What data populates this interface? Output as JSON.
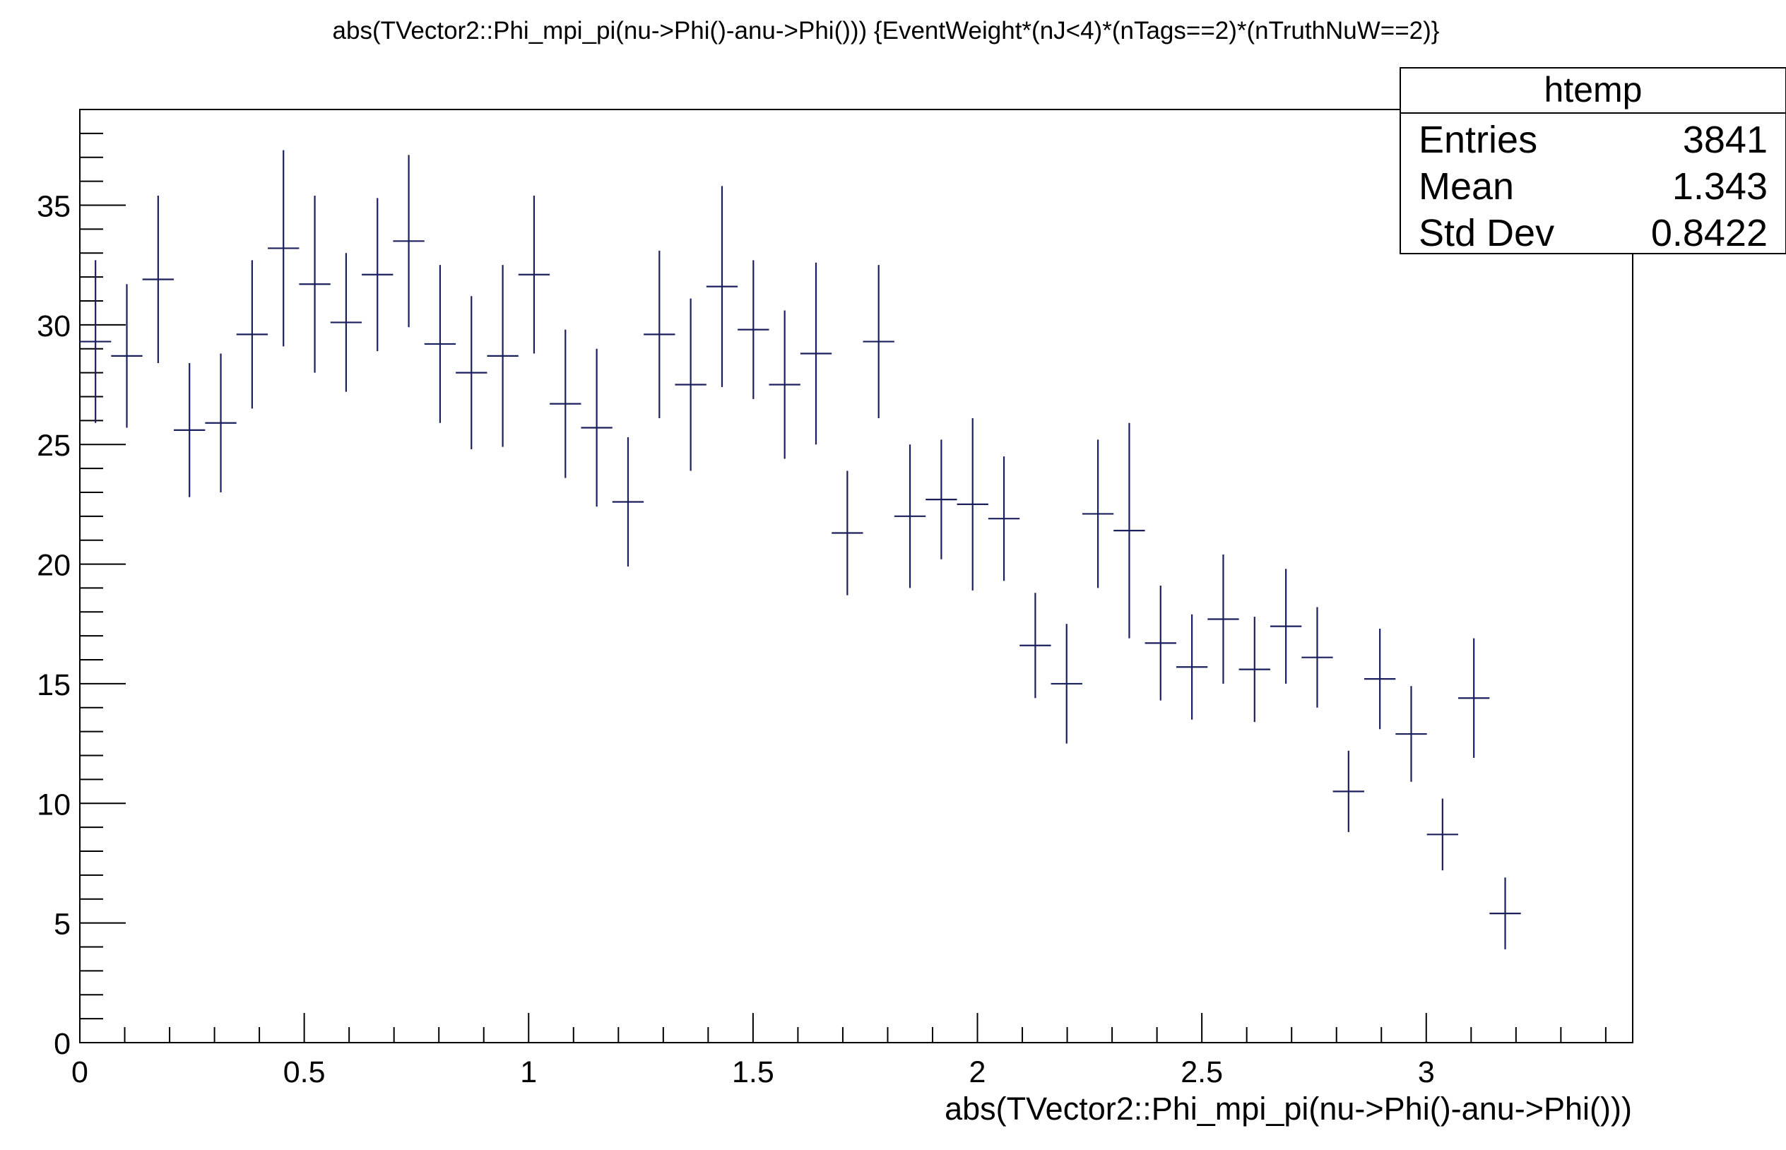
{
  "chart_data": {
    "type": "scatter",
    "style": "histogram-error-bars",
    "title": "abs(TVector2::Phi_mpi_pi(nu->Phi()-anu->Phi())) {EventWeight*(nJ<4)*(nTags==2)*(nTruthNuW==2)}",
    "xlabel": "abs(TVector2::Phi_mpi_pi(nu->Phi()-anu->Phi()))",
    "ylabel": "",
    "xlim": [
      0,
      3.46
    ],
    "ylim": [
      0,
      39
    ],
    "x_ticks": [
      "0",
      "0.5",
      "1",
      "1.5",
      "2",
      "2.5",
      "3"
    ],
    "y_ticks": [
      "0",
      "5",
      "10",
      "15",
      "20",
      "25",
      "30",
      "35"
    ],
    "grid": false,
    "legend": "none",
    "marker_color": "#1a1f5e",
    "bin_width": 0.0698,
    "series": [
      {
        "x": [
          0.0349,
          0.1047,
          0.1745,
          0.2443,
          0.3141,
          0.3839,
          0.4537,
          0.5235,
          0.5933,
          0.6631,
          0.7329,
          0.8027,
          0.8725,
          0.9423,
          1.0121,
          1.0819,
          1.1517,
          1.2215,
          1.2913,
          1.3611,
          1.4309,
          1.5007,
          1.5705,
          1.6403,
          1.7101,
          1.7799,
          1.8497,
          1.9195,
          1.9893,
          2.0591,
          2.1289,
          2.1987,
          2.2685,
          2.3383,
          2.4081,
          2.4779,
          2.5477,
          2.6175,
          2.6873,
          2.7571,
          2.8269,
          2.8967,
          2.9665,
          3.0363,
          3.1061,
          3.1759
        ],
        "y": [
          29.3,
          28.7,
          31.9,
          25.6,
          25.9,
          29.6,
          33.2,
          31.7,
          30.1,
          32.1,
          33.5,
          29.2,
          28.0,
          28.7,
          32.1,
          26.7,
          25.7,
          22.6,
          29.6,
          27.5,
          31.6,
          29.8,
          27.5,
          28.8,
          21.3,
          29.3,
          22.0,
          22.7,
          22.5,
          21.9,
          16.6,
          15.0,
          22.1,
          21.4,
          16.7,
          15.7,
          17.7,
          15.6,
          17.4,
          16.1,
          10.5,
          15.2,
          12.9,
          8.7,
          14.4,
          5.4
        ],
        "yerr": [
          3.4,
          3.0,
          3.5,
          2.8,
          2.9,
          3.1,
          4.1,
          3.7,
          2.9,
          3.2,
          3.6,
          3.3,
          3.2,
          3.8,
          3.3,
          3.1,
          3.3,
          2.7,
          3.5,
          3.6,
          4.2,
          2.9,
          3.1,
          3.8,
          2.6,
          3.2,
          3.0,
          2.5,
          3.6,
          2.6,
          2.2,
          2.5,
          3.1,
          4.5,
          2.4,
          2.2,
          2.7,
          2.2,
          2.4,
          2.1,
          1.7,
          2.1,
          2.0,
          1.5,
          2.5,
          1.5
        ]
      }
    ]
  },
  "stats_box": {
    "name": "htemp",
    "rows": [
      {
        "label": "Entries",
        "value": "3841"
      },
      {
        "label": "Mean",
        "value": "1.343"
      },
      {
        "label": "Std Dev",
        "value": "0.8422"
      }
    ]
  }
}
